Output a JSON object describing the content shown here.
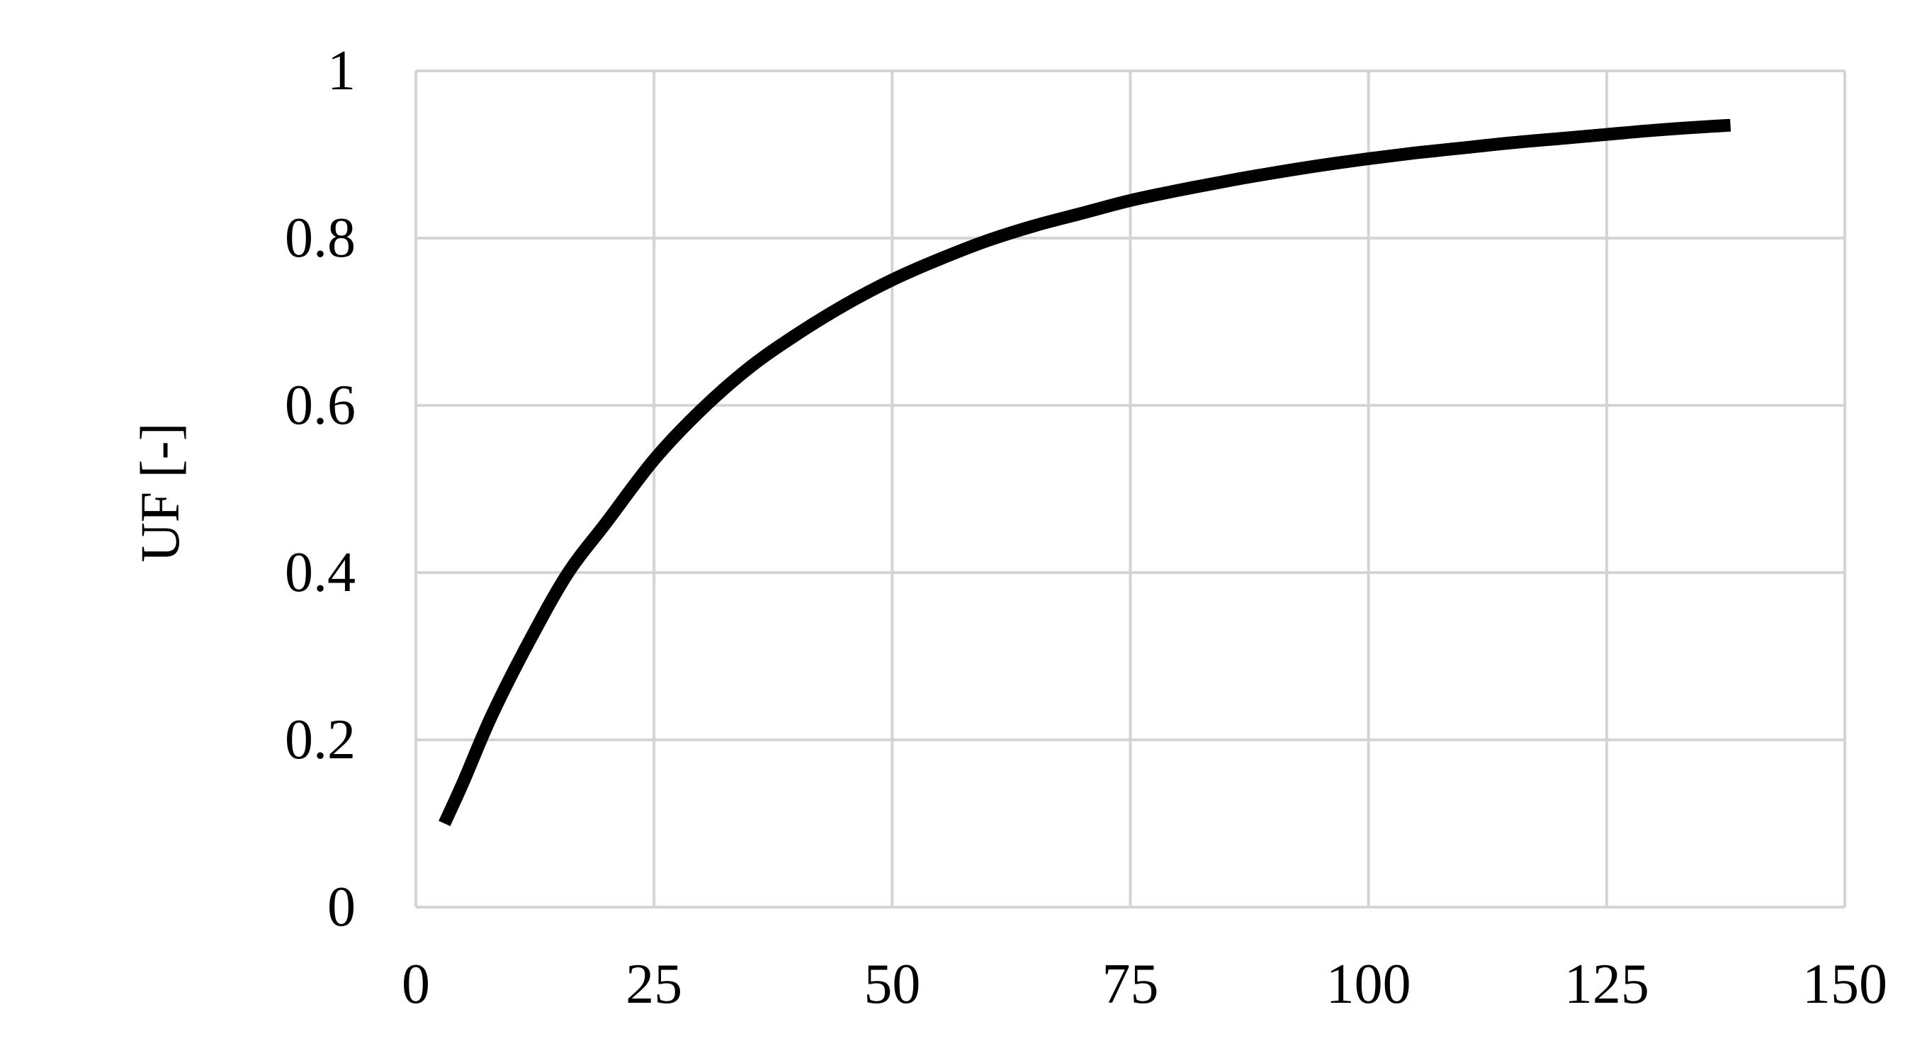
{
  "chart_data": {
    "type": "line",
    "title": "",
    "xlabel": "",
    "ylabel": "UF [-]",
    "xlim": [
      0,
      150
    ],
    "ylim": [
      0,
      1
    ],
    "x_ticks": [
      0,
      25,
      50,
      75,
      100,
      125,
      150
    ],
    "x_tick_labels": [
      "0",
      "25",
      "50",
      "75",
      "100",
      "125",
      "150"
    ],
    "y_ticks": [
      0,
      0.2,
      0.4,
      0.6,
      0.8,
      1
    ],
    "y_tick_labels": [
      "0",
      "0.2",
      "0.4",
      "0.6",
      "0.8",
      "1"
    ],
    "grid": true,
    "legend": "none",
    "series": [
      {
        "color": "#000000",
        "x": [
          3,
          5,
          8,
          12,
          16,
          20,
          25,
          30,
          35,
          40,
          45,
          50,
          55,
          60,
          65,
          70,
          75,
          80,
          85,
          90,
          95,
          100,
          105,
          110,
          115,
          120,
          125,
          130,
          135,
          138
        ],
        "y": [
          0.1,
          0.15,
          0.23,
          0.32,
          0.4,
          0.46,
          0.535,
          0.595,
          0.645,
          0.685,
          0.72,
          0.75,
          0.775,
          0.797,
          0.815,
          0.83,
          0.845,
          0.857,
          0.868,
          0.878,
          0.887,
          0.895,
          0.902,
          0.908,
          0.914,
          0.919,
          0.924,
          0.929,
          0.933,
          0.935
        ]
      }
    ]
  },
  "colors": {
    "grid": "#d4d4d4",
    "line": "#000000",
    "background": "#ffffff"
  }
}
